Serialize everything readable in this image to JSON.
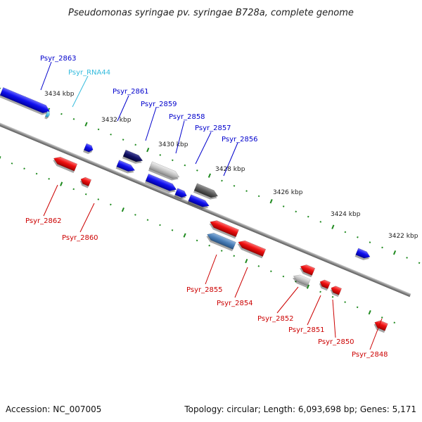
{
  "title": "Pseudomonas syringae pv. syringae B728a, complete genome",
  "footer": {
    "accession": "Accession: NC_007005",
    "summary": "Topology: circular; Length: 6,093,698 bp; Genes: 5,171"
  },
  "colors": {
    "backbone": "#8a8a8a",
    "forward_gene": "#0000ee",
    "reverse_gene": "#ee0000",
    "rna": "#33bbdd",
    "tick": "#1f8a1f"
  },
  "kbp_ticks": [
    {
      "label": "3434 kbp"
    },
    {
      "label": "3432 kbp"
    },
    {
      "label": "3430 kbp"
    },
    {
      "label": "3428 kbp"
    },
    {
      "label": "3426 kbp"
    },
    {
      "label": "3424 kbp"
    },
    {
      "label": "3422 kbp"
    }
  ],
  "genes": [
    {
      "name": "Psyr_2863",
      "strand": "+",
      "color": "#0000ee"
    },
    {
      "name": "Psyr_RNA44",
      "strand": "+",
      "color": "#33bbdd"
    },
    {
      "name": "Psyr_2861",
      "strand": "+",
      "color": "#0000ee"
    },
    {
      "name": "Psyr_2859",
      "strand": "+",
      "color": "#000066"
    },
    {
      "name": "Psyr_2858",
      "strand": "+",
      "color": "#bbbbbb"
    },
    {
      "name": "Psyr_2857",
      "strand": "+",
      "color": "#555555"
    },
    {
      "name": "Psyr_2856",
      "strand": "+",
      "color": "#0000ee"
    },
    {
      "name": "Psyr_2862",
      "strand": "-",
      "color": "#ee0000"
    },
    {
      "name": "Psyr_2860",
      "strand": "-",
      "color": "#ee0000"
    },
    {
      "name": "Psyr_2855",
      "strand": "-",
      "color": "#ee0000"
    },
    {
      "name": "Psyr_2854",
      "strand": "-",
      "color": "#ee0000"
    },
    {
      "name": "Psyr_2852",
      "strand": "-",
      "color": "#ee0000"
    },
    {
      "name": "Psyr_2851",
      "strand": "-",
      "color": "#ee0000"
    },
    {
      "name": "Psyr_2850",
      "strand": "-",
      "color": "#ee0000"
    },
    {
      "name": "Psyr_2848",
      "strand": "-",
      "color": "#ee0000"
    }
  ]
}
